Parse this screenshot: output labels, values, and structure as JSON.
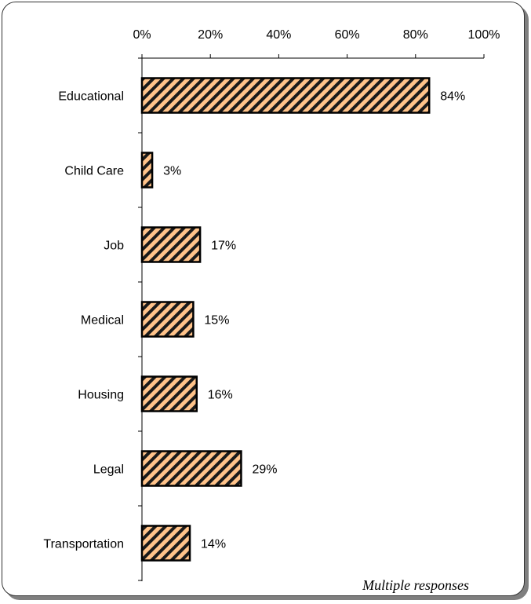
{
  "chart_data": {
    "type": "bar",
    "orientation": "horizontal",
    "categories": [
      "Educational",
      "Child Care",
      "Job",
      "Medical",
      "Housing",
      "Legal",
      "Transportation"
    ],
    "values": [
      84,
      3,
      17,
      15,
      16,
      29,
      14
    ],
    "data_labels": [
      "84%",
      "3%",
      "17%",
      "15%",
      "16%",
      "29%",
      "14%"
    ],
    "xlim": [
      0,
      100
    ],
    "x_ticks": [
      0,
      20,
      40,
      60,
      80,
      100
    ],
    "x_tick_labels": [
      "0%",
      "20%",
      "40%",
      "60%",
      "80%",
      "100%"
    ],
    "x_axis_position": "top",
    "grid": false,
    "legend": "none",
    "annotation": "Multiple responses",
    "bar_fill": "#ffc38a",
    "bar_hatch": "#1a1a1a",
    "bar_stroke": "#000000"
  }
}
